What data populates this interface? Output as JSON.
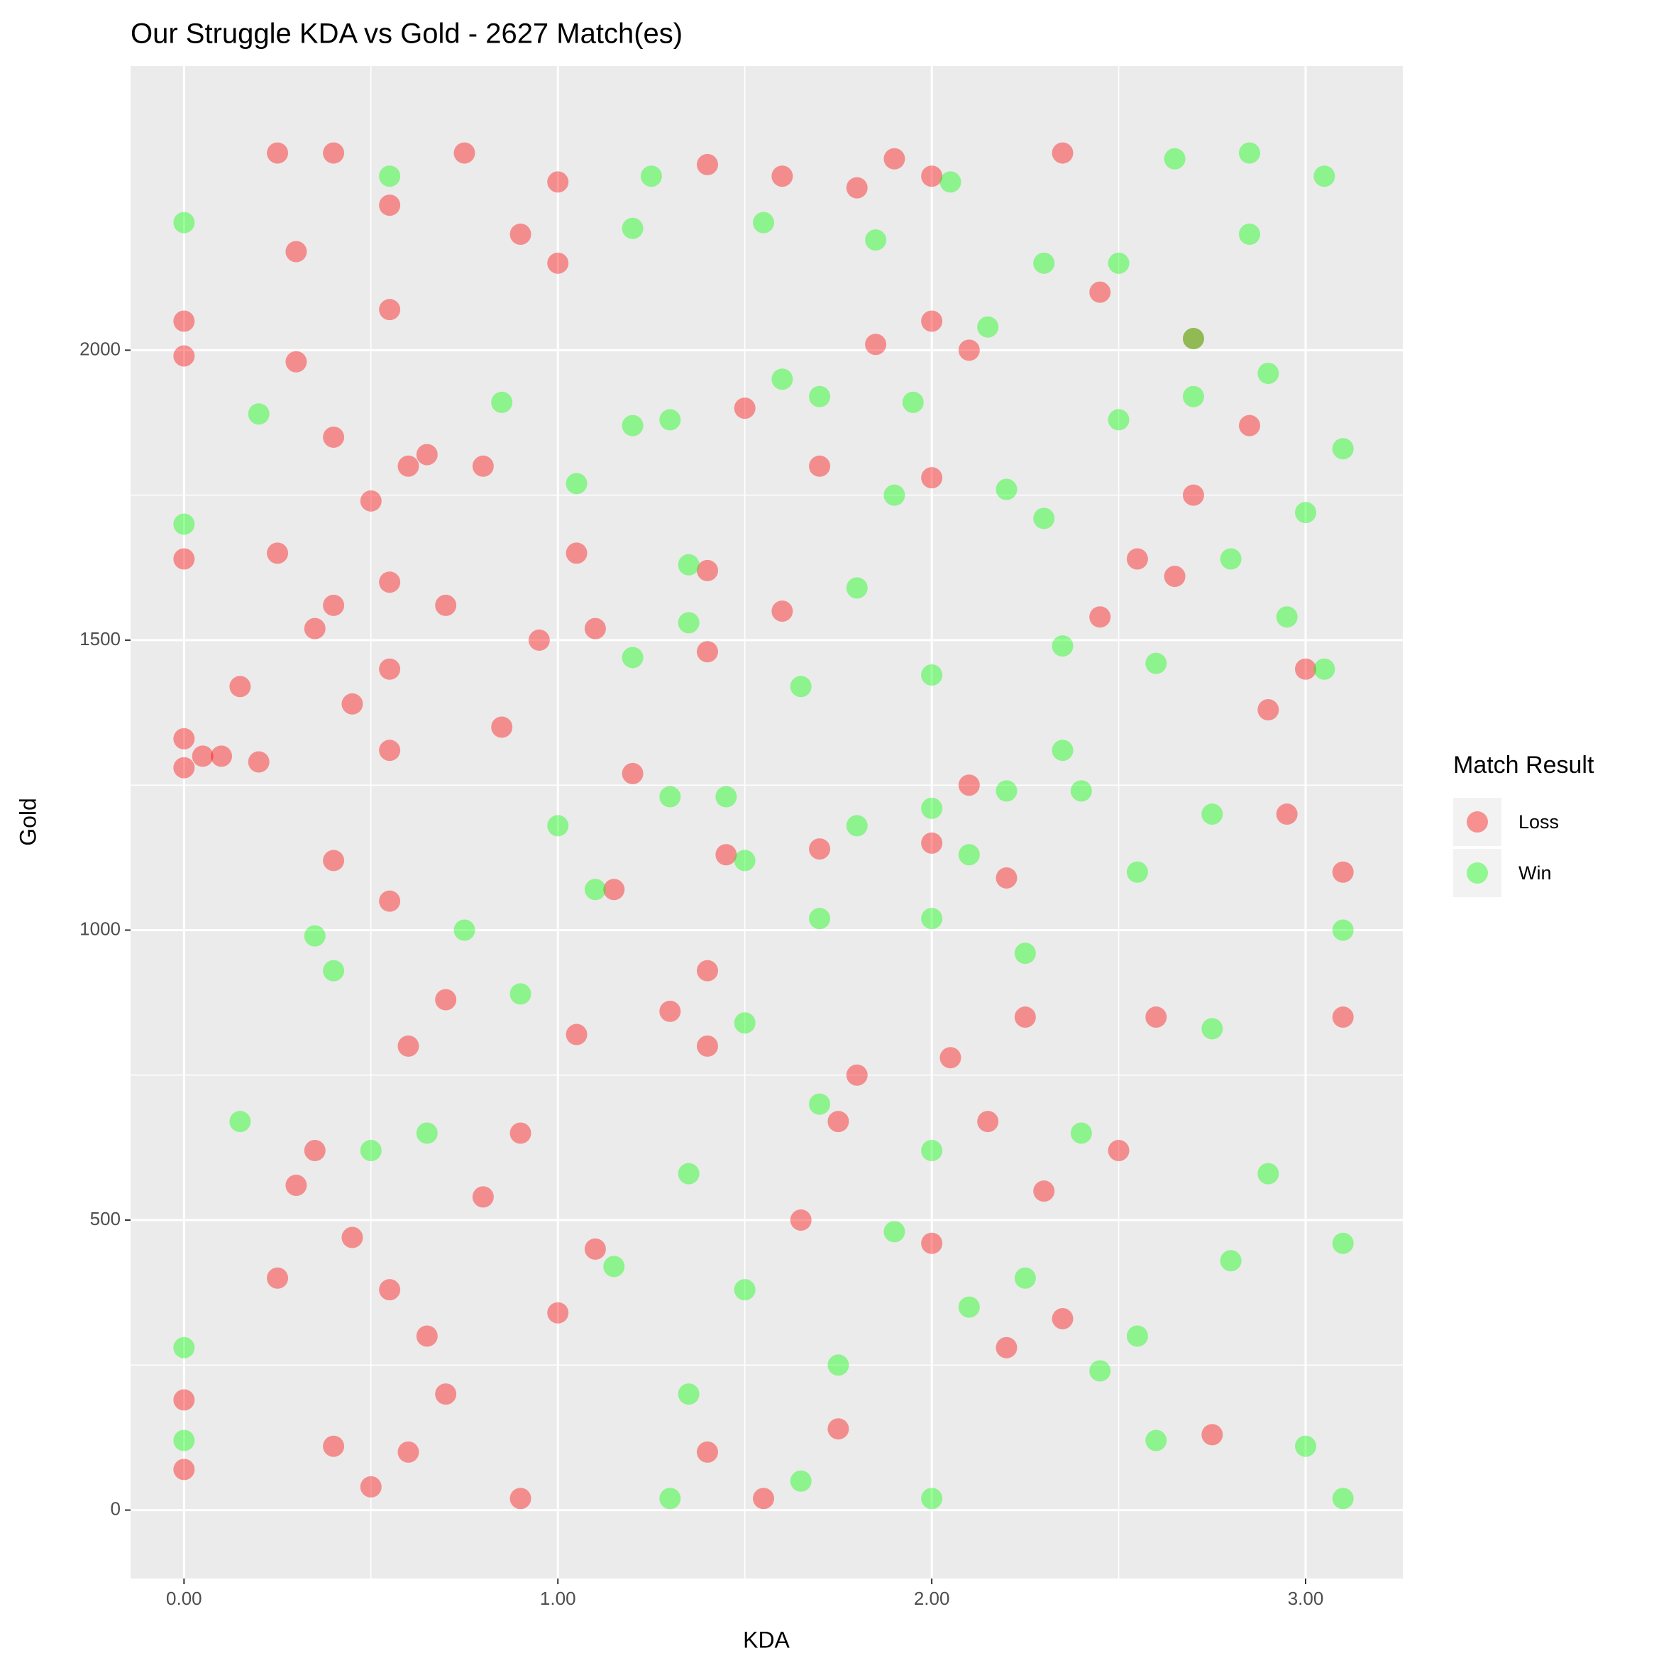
{
  "chart_data": {
    "type": "scatter",
    "title": "Our Struggle KDA vs Gold - 2627 Match(es)",
    "x_label": "KDA",
    "y_label": "Gold",
    "legend_title": "Match Result",
    "legend_position": "right",
    "grid": true,
    "xlim": [
      -0.143,
      3.26
    ],
    "ylim": [
      -118,
      2490
    ],
    "xticks": [
      {
        "value": 0,
        "label": "0.00"
      },
      {
        "value": 1,
        "label": "1.00"
      },
      {
        "value": 2,
        "label": "2.00"
      },
      {
        "value": 3,
        "label": "3.00"
      }
    ],
    "yticks": [
      0,
      500,
      1000,
      1500,
      2000
    ],
    "series": [
      {
        "name": "Loss",
        "color": "#ff0000",
        "x": [
          0.0,
          0.0,
          0.0,
          0.0,
          0.0,
          0.0,
          0.0,
          0.05,
          0.1,
          0.15,
          0.2,
          0.25,
          0.3,
          0.3,
          0.35,
          0.4,
          0.4,
          0.45,
          0.5,
          0.55,
          0.55,
          0.55,
          0.55,
          0.55,
          0.6,
          0.65,
          0.7,
          0.8,
          0.85,
          0.9,
          0.95,
          1.0,
          1.05,
          1.1,
          0.25,
          0.4,
          0.75,
          1.0,
          0.4,
          0.55,
          0.6,
          0.7,
          0.35,
          0.3,
          0.45,
          0.25,
          0.55,
          0.65,
          0.7,
          0.4,
          0.6,
          0.5,
          0.9,
          1.0,
          1.1,
          1.05,
          0.9,
          0.8,
          1.15,
          1.4,
          1.4,
          1.4,
          1.4,
          1.4,
          1.4,
          1.5,
          1.6,
          1.6,
          1.7,
          1.75,
          1.75,
          1.8,
          1.8,
          1.55,
          1.65,
          2.0,
          2.0,
          2.0,
          2.0,
          2.0,
          2.1,
          2.1,
          2.15,
          2.2,
          2.25,
          2.3,
          2.35,
          2.35,
          2.45,
          2.55,
          2.6,
          2.7,
          2.7,
          2.65,
          2.85,
          2.9,
          3.0,
          3.1,
          3.1,
          2.95,
          2.75,
          2.5,
          2.2,
          1.85,
          1.9,
          1.7,
          1.2,
          1.3,
          1.45,
          2.05,
          2.45
        ],
        "values": [
          1280,
          1330,
          1640,
          2050,
          1990,
          70,
          190,
          1300,
          1300,
          1420,
          1290,
          1650,
          2170,
          1980,
          1520,
          1560,
          1850,
          1390,
          1740,
          2250,
          2070,
          1600,
          1450,
          1310,
          1800,
          1820,
          1560,
          1800,
          1350,
          2200,
          1500,
          2150,
          1650,
          1520,
          2340,
          2340,
          2340,
          2290,
          1120,
          1050,
          800,
          880,
          620,
          560,
          470,
          400,
          380,
          300,
          200,
          110,
          100,
          40,
          20,
          340,
          450,
          820,
          650,
          540,
          1070,
          800,
          1480,
          1620,
          2320,
          100,
          930,
          1900,
          2300,
          1550,
          1140,
          670,
          140,
          2280,
          750,
          20,
          500,
          1780,
          2300,
          1150,
          460,
          2050,
          2000,
          1250,
          670,
          280,
          850,
          550,
          330,
          2340,
          1540,
          1640,
          850,
          2020,
          1750,
          1610,
          1870,
          1380,
          1450,
          850,
          1100,
          1200,
          130,
          620,
          1090,
          2010,
          2330,
          1800,
          1270,
          860,
          1130,
          780,
          2100
        ]
      },
      {
        "name": "Win",
        "color": "#00ff00",
        "x": [
          0.0,
          0.0,
          0.0,
          0.0,
          0.15,
          0.35,
          0.4,
          0.55,
          0.85,
          1.05,
          1.0,
          1.1,
          1.2,
          1.2,
          1.2,
          1.25,
          1.3,
          1.35,
          1.35,
          1.3,
          1.35,
          1.35,
          1.3,
          1.5,
          1.5,
          1.5,
          1.55,
          1.6,
          1.65,
          1.7,
          1.7,
          1.7,
          1.75,
          1.8,
          1.8,
          1.85,
          1.9,
          1.95,
          2.0,
          2.0,
          2.0,
          2.0,
          2.0,
          2.05,
          2.1,
          2.15,
          2.2,
          2.2,
          2.25,
          2.3,
          2.3,
          2.35,
          2.35,
          2.4,
          2.4,
          2.45,
          2.5,
          2.55,
          2.6,
          2.6,
          2.65,
          2.7,
          2.75,
          2.75,
          2.8,
          2.8,
          2.85,
          2.85,
          2.9,
          2.95,
          3.0,
          3.05,
          3.05,
          3.1,
          3.1,
          3.1,
          3.1,
          3.0,
          2.9,
          2.55,
          2.25,
          2.1,
          1.9,
          1.65,
          1.45,
          1.15,
          0.9,
          0.65,
          0.75,
          0.5,
          0.2,
          2.5,
          2.7
        ],
        "values": [
          2220,
          1700,
          280,
          120,
          670,
          990,
          930,
          2300,
          1910,
          1770,
          1180,
          1070,
          2210,
          1870,
          1470,
          2300,
          1880,
          1630,
          1530,
          1230,
          580,
          200,
          20,
          1120,
          840,
          380,
          2220,
          1950,
          1420,
          1920,
          1020,
          700,
          250,
          1590,
          1180,
          2190,
          1750,
          1910,
          1020,
          620,
          1440,
          1210,
          20,
          2290,
          1130,
          2040,
          1760,
          1240,
          960,
          2150,
          1710,
          1490,
          1310,
          1240,
          650,
          240,
          1880,
          1100,
          1460,
          120,
          2330,
          1920,
          1200,
          830,
          430,
          1640,
          2340,
          2200,
          1960,
          1540,
          1720,
          1450,
          2300,
          1830,
          1000,
          460,
          20,
          110,
          580,
          300,
          400,
          350,
          480,
          50,
          1230,
          420,
          890,
          650,
          1000,
          620,
          1890,
          2150,
          2020
        ]
      }
    ]
  }
}
